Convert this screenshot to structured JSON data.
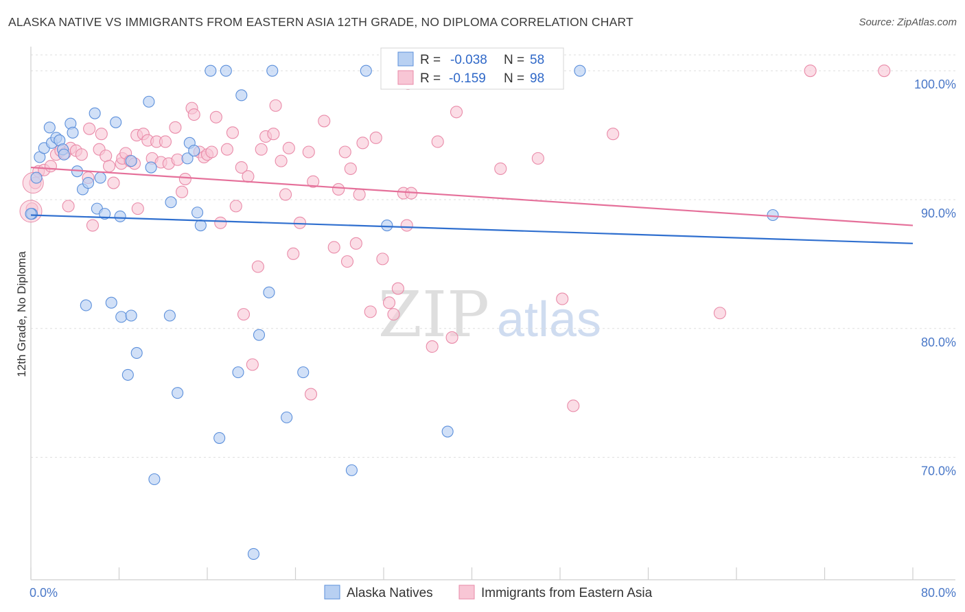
{
  "title": "ALASKA NATIVE VS IMMIGRANTS FROM EASTERN ASIA 12TH GRADE, NO DIPLOMA CORRELATION CHART",
  "source": "Source: ZipAtlas.com",
  "watermark": {
    "zip": "ZIP",
    "atlas": "atlas"
  },
  "colors": {
    "blue_fill": "#b8d0f2",
    "blue_stroke": "#5b8fdb",
    "blue_line": "#2f6fcf",
    "pink_fill": "#f8c6d5",
    "pink_stroke": "#e98aa8",
    "pink_line": "#e5709a",
    "tick_text": "#4a78c8",
    "grid": "#dddddd"
  },
  "legend": {
    "blue": {
      "r_label": "R =",
      "r_value": "-0.038",
      "n_label": "N =",
      "n_value": "58"
    },
    "pink": {
      "r_label": "R =",
      "r_value": "-0.159",
      "n_label": "N =",
      "n_value": "98"
    }
  },
  "bottom_legend": [
    "Alaska Natives",
    "Immigrants from Eastern Asia"
  ],
  "chart_data": {
    "type": "scatter",
    "title": "ALASKA NATIVE VS IMMIGRANTS FROM EASTERN ASIA 12TH GRADE, NO DIPLOMA CORRELATION CHART",
    "xlabel": "",
    "ylabel": "12th Grade, No Diploma",
    "xlim": [
      0,
      80
    ],
    "ylim": [
      60.5,
      101.5
    ],
    "x_tick_labels": [
      "0.0%",
      "80.0%"
    ],
    "y_ticks": [
      70,
      80,
      90,
      100
    ],
    "y_tick_labels": [
      "70.0%",
      "80.0%",
      "90.0%",
      "100.0%"
    ],
    "grid": true,
    "legend_position": "top-center",
    "series": [
      {
        "name": "Alaska Natives",
        "color": "#b8d0f2",
        "trend": {
          "x": [
            0,
            80
          ],
          "y": [
            88.8,
            86.6
          ]
        },
        "points": [
          [
            0.1,
            88.9
          ],
          [
            0.5,
            91.7
          ],
          [
            0.8,
            93.3
          ],
          [
            1.2,
            94.0
          ],
          [
            1.7,
            95.6
          ],
          [
            1.9,
            94.4
          ],
          [
            2.3,
            94.8
          ],
          [
            2.6,
            94.6
          ],
          [
            2.9,
            93.9
          ],
          [
            3.0,
            93.5
          ],
          [
            3.6,
            95.9
          ],
          [
            3.8,
            95.2
          ],
          [
            4.2,
            92.2
          ],
          [
            4.7,
            90.8
          ],
          [
            5.2,
            91.3
          ],
          [
            5.8,
            96.7
          ],
          [
            6.0,
            89.3
          ],
          [
            6.3,
            91.7
          ],
          [
            6.7,
            88.9
          ],
          [
            7.7,
            96.0
          ],
          [
            8.1,
            88.7
          ],
          [
            9.1,
            93.0
          ],
          [
            10.7,
            97.6
          ],
          [
            10.9,
            92.5
          ],
          [
            12.7,
            89.8
          ],
          [
            14.2,
            93.2
          ],
          [
            14.4,
            94.4
          ],
          [
            14.8,
            93.8
          ],
          [
            15.1,
            89.0
          ],
          [
            15.4,
            88.0
          ],
          [
            16.3,
            100.0
          ],
          [
            17.7,
            100.0
          ],
          [
            19.1,
            98.1
          ],
          [
            21.9,
            100.0
          ],
          [
            30.4,
            100.0
          ],
          [
            32.3,
            88.0
          ],
          [
            44.6,
            100.0
          ],
          [
            49.8,
            100.0
          ],
          [
            67.3,
            88.8
          ],
          [
            5.0,
            81.8
          ],
          [
            7.3,
            82.0
          ],
          [
            8.2,
            80.9
          ],
          [
            9.1,
            81.0
          ],
          [
            12.6,
            81.0
          ],
          [
            20.7,
            79.5
          ],
          [
            21.6,
            82.8
          ],
          [
            9.6,
            78.1
          ],
          [
            8.8,
            76.4
          ],
          [
            18.8,
            76.6
          ],
          [
            24.7,
            76.6
          ],
          [
            13.3,
            75.0
          ],
          [
            23.2,
            73.1
          ],
          [
            37.8,
            72.0
          ],
          [
            17.1,
            71.5
          ],
          [
            11.2,
            68.3
          ],
          [
            29.1,
            69.0
          ],
          [
            20.2,
            62.5
          ],
          [
            0.0,
            88.9
          ]
        ]
      },
      {
        "name": "Immigrants from Eastern Asia",
        "color": "#f8c6d5",
        "trend": {
          "x": [
            0,
            80
          ],
          "y": [
            92.5,
            88.0
          ]
        },
        "points": [
          [
            0.1,
            89.3
          ],
          [
            0.4,
            91.3
          ],
          [
            0.7,
            92.2
          ],
          [
            1.2,
            92.3
          ],
          [
            1.8,
            92.6
          ],
          [
            2.3,
            93.5
          ],
          [
            2.7,
            93.8
          ],
          [
            3.1,
            93.6
          ],
          [
            3.4,
            89.5
          ],
          [
            3.6,
            94.0
          ],
          [
            4.1,
            93.8
          ],
          [
            4.6,
            93.5
          ],
          [
            5.2,
            91.7
          ],
          [
            5.3,
            95.5
          ],
          [
            5.6,
            88.0
          ],
          [
            6.2,
            93.9
          ],
          [
            6.4,
            95.1
          ],
          [
            6.8,
            93.4
          ],
          [
            7.1,
            92.6
          ],
          [
            7.5,
            91.3
          ],
          [
            8.2,
            92.8
          ],
          [
            8.3,
            93.2
          ],
          [
            8.6,
            93.6
          ],
          [
            9.0,
            93.0
          ],
          [
            9.4,
            92.8
          ],
          [
            9.6,
            95.0
          ],
          [
            9.7,
            89.3
          ],
          [
            10.2,
            95.1
          ],
          [
            10.6,
            94.6
          ],
          [
            11.0,
            93.2
          ],
          [
            11.4,
            94.5
          ],
          [
            11.8,
            92.9
          ],
          [
            12.2,
            94.5
          ],
          [
            12.5,
            92.8
          ],
          [
            13.1,
            95.6
          ],
          [
            13.3,
            93.1
          ],
          [
            13.7,
            90.6
          ],
          [
            14.0,
            91.6
          ],
          [
            14.6,
            97.1
          ],
          [
            14.8,
            96.6
          ],
          [
            15.3,
            93.7
          ],
          [
            15.7,
            93.3
          ],
          [
            16.0,
            93.5
          ],
          [
            16.4,
            93.7
          ],
          [
            16.8,
            96.4
          ],
          [
            17.2,
            88.2
          ],
          [
            17.8,
            93.9
          ],
          [
            18.3,
            95.2
          ],
          [
            18.6,
            89.5
          ],
          [
            19.1,
            92.5
          ],
          [
            19.7,
            91.8
          ],
          [
            20.6,
            84.8
          ],
          [
            20.9,
            93.9
          ],
          [
            21.3,
            94.9
          ],
          [
            22.0,
            95.1
          ],
          [
            22.2,
            97.3
          ],
          [
            22.7,
            93.0
          ],
          [
            23.1,
            90.4
          ],
          [
            23.4,
            94.0
          ],
          [
            23.8,
            85.8
          ],
          [
            24.4,
            88.2
          ],
          [
            25.2,
            93.7
          ],
          [
            25.6,
            91.4
          ],
          [
            26.6,
            96.1
          ],
          [
            27.5,
            86.3
          ],
          [
            27.9,
            90.8
          ],
          [
            28.5,
            93.7
          ],
          [
            28.7,
            85.2
          ],
          [
            29.0,
            92.4
          ],
          [
            29.5,
            86.6
          ],
          [
            29.8,
            90.4
          ],
          [
            30.1,
            94.4
          ],
          [
            30.8,
            81.3
          ],
          [
            31.3,
            94.8
          ],
          [
            31.9,
            85.4
          ],
          [
            32.5,
            82.0
          ],
          [
            32.9,
            81.1
          ],
          [
            33.3,
            83.1
          ],
          [
            33.8,
            90.5
          ],
          [
            34.1,
            88.0
          ],
          [
            34.5,
            90.5
          ],
          [
            36.4,
            78.6
          ],
          [
            36.9,
            94.5
          ],
          [
            38.2,
            79.3
          ],
          [
            38.6,
            96.8
          ],
          [
            42.6,
            92.4
          ],
          [
            46.0,
            93.2
          ],
          [
            48.2,
            82.3
          ],
          [
            49.2,
            74.0
          ],
          [
            52.8,
            95.1
          ],
          [
            62.5,
            81.2
          ],
          [
            70.7,
            100.0
          ],
          [
            77.4,
            100.0
          ],
          [
            20.1,
            77.2
          ],
          [
            25.4,
            74.9
          ],
          [
            19.3,
            81.1
          ],
          [
            40.3,
            100.0
          ],
          [
            34.2,
            99.0
          ]
        ]
      }
    ]
  }
}
